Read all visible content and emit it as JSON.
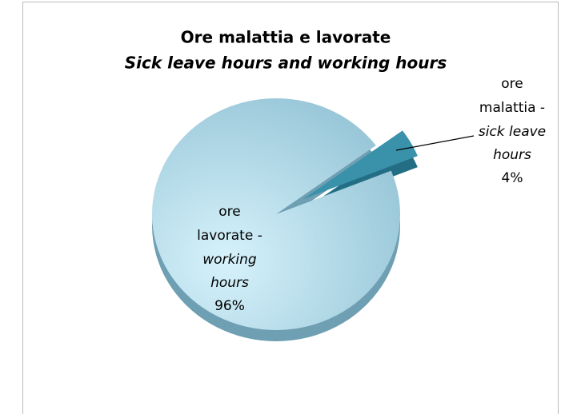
{
  "chart_data": {
    "type": "pie",
    "title": "Ore malattia e lavorate",
    "subtitle": "Sick leave hours and working hours",
    "categories": [
      "ore lavorate -",
      "ore malattia -"
    ],
    "categories_en": [
      "working hours",
      "sick leave hours"
    ],
    "values": [
      96,
      4
    ],
    "value_labels": [
      "96%",
      "4%"
    ],
    "colors": [
      "#a9d3e3",
      "#3a91aa"
    ]
  }
}
